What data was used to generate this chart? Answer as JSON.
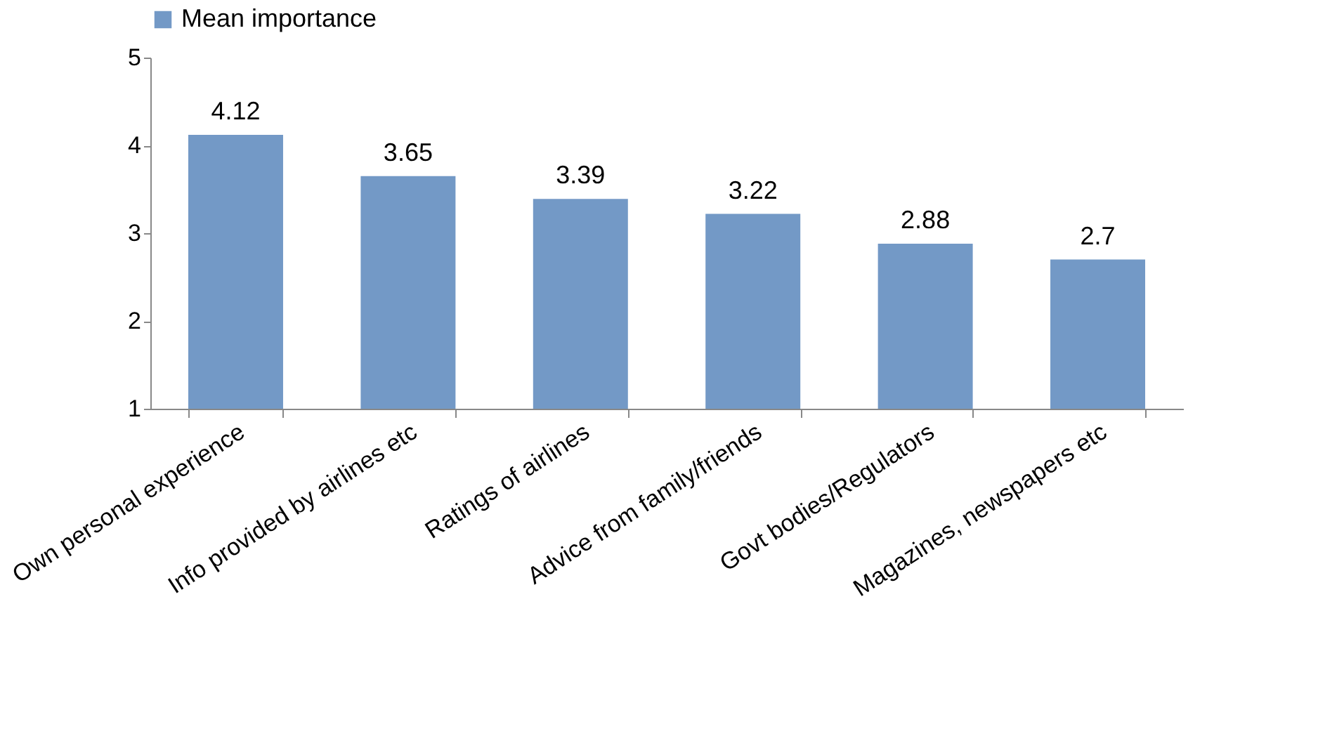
{
  "chart_data": {
    "type": "bar",
    "categories": [
      "Own personal experience",
      "Info provided by airlines etc",
      "Ratings of airlines",
      "Advice from family/friends",
      "Govt bodies/Regulators",
      "Magazines, newspapers etc"
    ],
    "series": [
      {
        "name": "Mean importance",
        "color": "#7399c6",
        "values": [
          4.12,
          3.65,
          3.39,
          3.22,
          2.88,
          2.7
        ]
      }
    ],
    "ylim": [
      1,
      5
    ],
    "yticks": [
      1,
      2,
      3,
      4,
      5
    ],
    "grid": false,
    "legend": "top",
    "data_labels": true
  }
}
